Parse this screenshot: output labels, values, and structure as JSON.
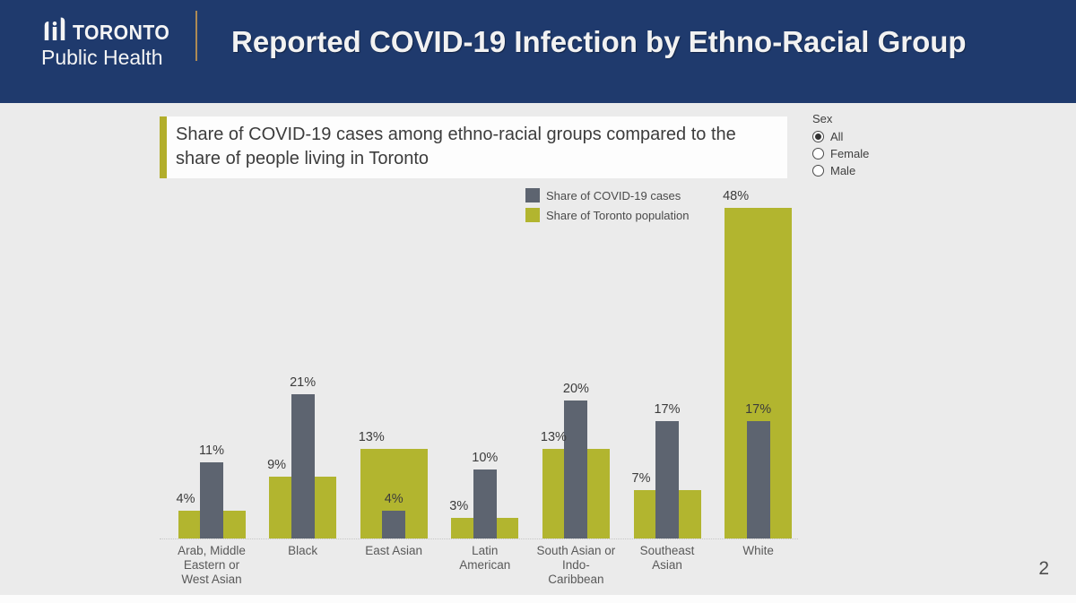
{
  "header": {
    "logo_line1": "Toronto",
    "logo_line2": "Public Health",
    "title": "Reported COVID-19 Infection by Ethno-Racial Group"
  },
  "subtitle": "Share of COVID-19 cases among ethno-racial groups compared to the share of people living in Toronto",
  "sex_filter": {
    "label": "Sex",
    "options": [
      {
        "label": "All",
        "selected": true
      },
      {
        "label": "Female",
        "selected": false
      },
      {
        "label": "Male",
        "selected": false
      }
    ]
  },
  "legend": {
    "items": [
      {
        "label": "Share of COVID-19 cases",
        "color": "#5d6470"
      },
      {
        "label": "Share of Toronto population",
        "color": "#b2b52f"
      }
    ]
  },
  "chart_data": {
    "type": "bar",
    "title": "Share of COVID-19 cases among ethno-racial groups compared to the share of people living in Toronto",
    "categories": [
      "Arab, Middle Eastern or West Asian",
      "Black",
      "East Asian",
      "Latin American",
      "South Asian or Indo-Caribbean",
      "Southeast Asian",
      "White"
    ],
    "category_lines": [
      [
        "Arab, Middle",
        "Eastern or",
        "West Asian"
      ],
      [
        "Black"
      ],
      [
        "East Asian"
      ],
      [
        "Latin",
        "American"
      ],
      [
        "South Asian or",
        "Indo-",
        "Caribbean"
      ],
      [
        "Southeast",
        "Asian"
      ],
      [
        "White"
      ]
    ],
    "series": [
      {
        "name": "Share of COVID-19 cases",
        "color": "#5d6470",
        "values": [
          11,
          21,
          4,
          10,
          20,
          17,
          17
        ]
      },
      {
        "name": "Share of Toronto population",
        "color": "#b2b52f",
        "values": [
          4,
          9,
          13,
          3,
          13,
          7,
          48
        ]
      }
    ],
    "value_suffix": "%",
    "xlabel": "",
    "ylabel": "",
    "ylim": [
      0,
      50
    ],
    "grid": false,
    "legend_position": "top-right-of-plot",
    "data_labels": true
  },
  "page_number": "2",
  "colors": {
    "banner_blue": "#1f3a6d",
    "banner_divider_tan": "#ad8a55",
    "accent_olive": "#b2ae2b",
    "bar_gray": "#5d6470",
    "bar_green": "#b2b52f",
    "background_gray": "#ebebeb"
  }
}
